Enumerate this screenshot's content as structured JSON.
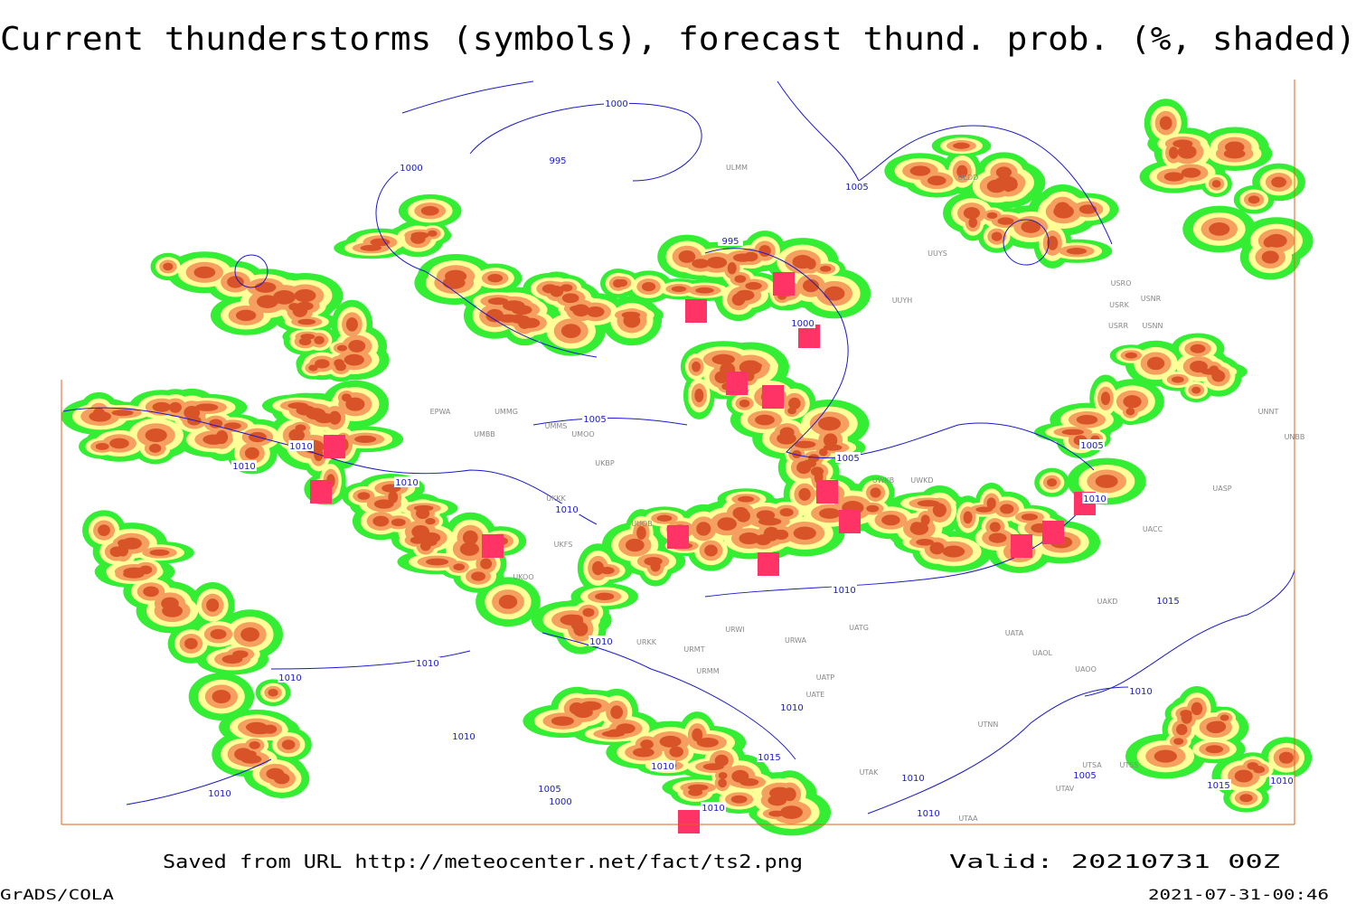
{
  "title": "Current thunderstorms (symbols), forecast thund. prob. (%, shaded)",
  "footer": {
    "source": "Saved from URL http://meteocenter.net/fact/ts2.png",
    "valid": "Valid: 20210731 00Z",
    "software": "GrADS/COLA",
    "timestamp": "2021-07-31-00:46"
  },
  "isobar_labels": [
    "1000",
    "1000",
    "995",
    "995",
    "1005",
    "1000",
    "1010",
    "1010",
    "1005",
    "1005",
    "1010",
    "1010",
    "1005",
    "1010",
    "1010",
    "1015",
    "1010",
    "1010",
    "1010",
    "1010",
    "1010",
    "1010",
    "1015",
    "1010",
    "1005",
    "1000",
    "1010",
    "1010",
    "1010",
    "1010",
    "1015",
    "1010",
    "1005"
  ],
  "station_labels": [
    "ULDD",
    "UUYS",
    "UUYH",
    "USRO",
    "USRK",
    "USNR",
    "USRR",
    "USNN",
    "EPWA",
    "UMMG",
    "UMBB",
    "UMMS",
    "UMOO",
    "UKBP",
    "UKKK",
    "UUOB",
    "UKFS",
    "UKOO",
    "URWI",
    "UATG",
    "URWA",
    "URMT",
    "UATA",
    "UAOL",
    "UAOO",
    "UAKD",
    "UACC",
    "UASP",
    "UNNT",
    "UNBB",
    "UTNN",
    "UATE",
    "UATP",
    "UTSA",
    "UTSS",
    "UTAK",
    "UTAA",
    "UTAV",
    "URMM",
    "URKK",
    "ULMM",
    "UWKD",
    "UWKB"
  ]
}
